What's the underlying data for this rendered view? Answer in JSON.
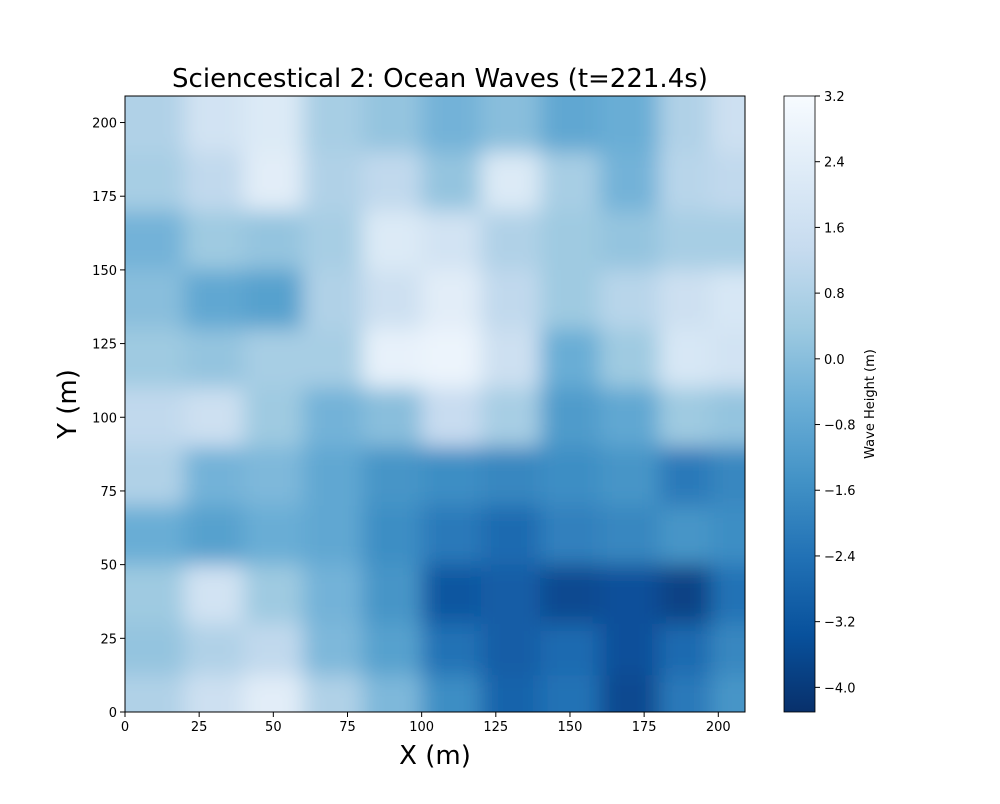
{
  "chart_data": {
    "type": "heatmap",
    "title": "Sciencestical 2:  Ocean Waves (t=221.4s)",
    "xlabel": "X (m)",
    "ylabel": "Y (m)",
    "xlim": [
      0,
      209
    ],
    "ylim": [
      0,
      209
    ],
    "xticks": [
      0,
      25,
      50,
      75,
      100,
      125,
      150,
      175,
      200
    ],
    "yticks": [
      0,
      25,
      50,
      75,
      100,
      125,
      150,
      175,
      200
    ],
    "colormap": "Blues_r",
    "colorbar": {
      "label": "Wave Height (m)",
      "range": [
        -4.3,
        3.2
      ],
      "ticks": [
        3.2,
        2.4,
        1.6,
        0.8,
        0.0,
        -0.8,
        -1.6,
        -2.4,
        -3.2,
        -4.0
      ],
      "tick_labels": [
        "3.2",
        "2.4",
        "1.6",
        "0.8",
        "0.0",
        "−0.8",
        "−1.6",
        "−2.4",
        "−3.2",
        "−4.0"
      ]
    },
    "grid": false,
    "wave_height_grid": {
      "x_centers": [
        10,
        30,
        50,
        70,
        90,
        110,
        130,
        150,
        170,
        190,
        205
      ],
      "y_centers": [
        200,
        180,
        160,
        140,
        120,
        100,
        80,
        60,
        40,
        20,
        5
      ],
      "values": [
        [
          0.8,
          1.8,
          2.2,
          0.6,
          0.2,
          -0.4,
          0.0,
          -0.8,
          -0.6,
          0.8,
          1.6
        ],
        [
          0.6,
          1.2,
          2.4,
          0.8,
          1.2,
          0.2,
          2.2,
          0.6,
          -0.4,
          1.0,
          1.2
        ],
        [
          -0.4,
          0.4,
          0.2,
          0.6,
          2.2,
          1.8,
          0.8,
          0.4,
          0.2,
          0.6,
          0.6
        ],
        [
          0.0,
          -0.8,
          -1.0,
          0.8,
          1.6,
          2.4,
          1.2,
          0.4,
          1.0,
          1.6,
          2.0
        ],
        [
          0.4,
          0.2,
          0.6,
          0.6,
          2.6,
          2.8,
          1.6,
          -0.6,
          0.4,
          2.0,
          1.8
        ],
        [
          1.2,
          1.6,
          0.4,
          -0.4,
          0.0,
          1.4,
          0.6,
          -1.2,
          -0.8,
          0.4,
          0.2
        ],
        [
          0.8,
          -0.4,
          -0.2,
          -0.8,
          -1.4,
          -1.6,
          -1.8,
          -1.6,
          -1.4,
          -2.2,
          -1.8
        ],
        [
          -0.6,
          -1.0,
          -0.6,
          -0.8,
          -1.6,
          -2.2,
          -2.6,
          -2.0,
          -1.8,
          -1.4,
          -1.6
        ],
        [
          0.4,
          1.8,
          0.4,
          -0.4,
          -1.4,
          -3.2,
          -3.0,
          -3.6,
          -3.4,
          -3.8,
          -2.4
        ],
        [
          0.2,
          0.8,
          1.2,
          -0.2,
          -1.0,
          -2.4,
          -3.0,
          -2.6,
          -3.4,
          -2.6,
          -1.8
        ],
        [
          0.8,
          1.6,
          2.4,
          0.8,
          -0.2,
          -1.6,
          -2.8,
          -2.4,
          -3.6,
          -2.2,
          -1.4
        ]
      ]
    }
  }
}
